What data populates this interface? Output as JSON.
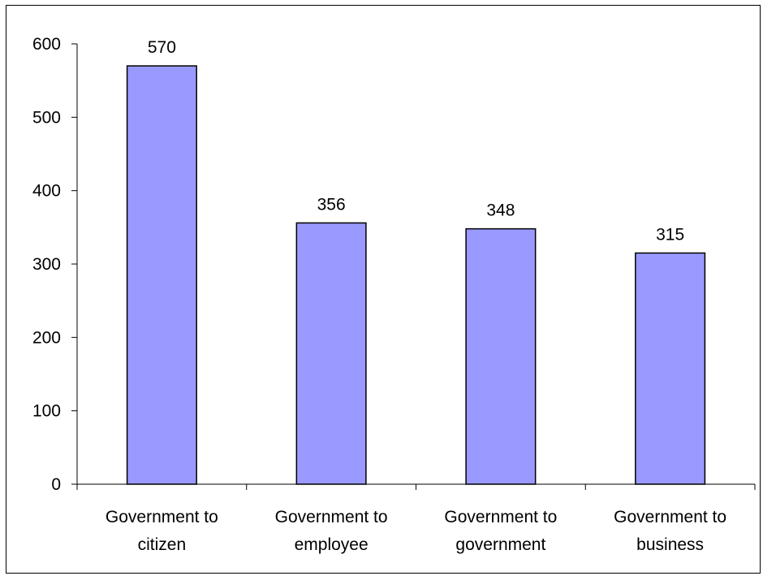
{
  "chart_data": {
    "type": "bar",
    "categories": [
      [
        "Government to",
        "citizen"
      ],
      [
        "Government to",
        "employee"
      ],
      [
        "Government to",
        "government"
      ],
      [
        "Government to",
        "business"
      ]
    ],
    "values": [
      570,
      356,
      348,
      315
    ],
    "data_labels": [
      "570",
      "356",
      "348",
      "315"
    ],
    "title": "",
    "xlabel": "",
    "ylabel": "",
    "ylim": [
      0,
      600
    ],
    "yticks": [
      0,
      100,
      200,
      300,
      400,
      500,
      600
    ],
    "grid": false,
    "legend": "none",
    "bar_color": "#9999ff",
    "bar_border_color": "#000000"
  }
}
